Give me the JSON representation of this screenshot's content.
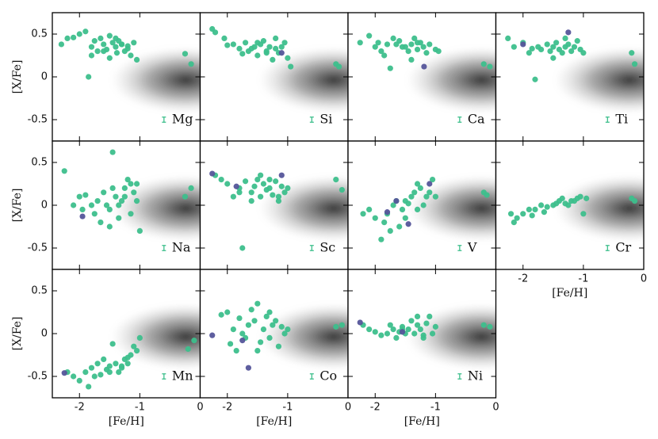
{
  "chart_data": [
    {
      "type": "scatter",
      "annotation": "Mg",
      "ylabel": "[X/Fe]",
      "xlim": [
        -2.45,
        0
      ],
      "ylim": [
        -0.75,
        0.75
      ],
      "xticks": [
        -2,
        -1,
        0
      ],
      "yticks": [
        0.5,
        0,
        -0.5
      ],
      "error_bar": {
        "x": -0.6,
        "y": -0.5,
        "yerr": 0.03
      },
      "series": [
        {
          "color": "#3dbf8c",
          "x": [
            -2.3,
            -2.2,
            -2.1,
            -2.0,
            -1.9,
            -1.85,
            -1.8,
            -1.75,
            -1.7,
            -1.65,
            -1.6,
            -1.55,
            -1.5,
            -1.45,
            -1.4,
            -1.38,
            -1.35,
            -1.3,
            -1.25,
            -1.2,
            -1.15,
            -1.1,
            -1.05,
            -1.6,
            -1.5,
            -1.4,
            -1.3,
            -1.2,
            -1.8,
            -0.25,
            -0.15
          ],
          "y": [
            0.38,
            0.45,
            0.46,
            0.5,
            0.53,
            0.0,
            0.35,
            0.42,
            0.3,
            0.45,
            0.38,
            0.32,
            0.48,
            0.4,
            0.35,
            0.28,
            0.42,
            0.38,
            0.3,
            0.33,
            0.25,
            0.4,
            0.2,
            0.3,
            0.22,
            0.45,
            0.38,
            0.36,
            0.25,
            0.27,
            0.15
          ]
        }
      ]
    },
    {
      "type": "scatter",
      "annotation": "Si",
      "xlim": [
        -2.45,
        0
      ],
      "ylim": [
        -0.75,
        0.75
      ],
      "xticks": [
        -2,
        -1,
        0
      ],
      "yticks": [
        0.5,
        0,
        -0.5
      ],
      "error_bar": {
        "x": -0.6,
        "y": -0.5,
        "yerr": 0.03
      },
      "series": [
        {
          "color": "#3dbf8c",
          "x": [
            -2.25,
            -2.2,
            -2.05,
            -2.0,
            -1.9,
            -1.8,
            -1.75,
            -1.7,
            -1.6,
            -1.55,
            -1.5,
            -1.45,
            -1.4,
            -1.35,
            -1.3,
            -1.25,
            -1.2,
            -1.15,
            -1.1,
            -1.05,
            -1.0,
            -1.65,
            -1.5,
            -1.35,
            -1.2,
            -0.95,
            -0.2,
            -0.15
          ],
          "y": [
            0.56,
            0.52,
            0.45,
            0.37,
            0.38,
            0.33,
            0.27,
            0.4,
            0.33,
            0.35,
            0.25,
            0.38,
            0.42,
            0.3,
            0.35,
            0.2,
            0.33,
            0.28,
            0.35,
            0.4,
            0.22,
            0.3,
            0.4,
            0.28,
            0.45,
            0.12,
            0.15,
            0.12
          ]
        },
        {
          "color": "#55559a",
          "x": [
            -1.1
          ],
          "y": [
            0.28
          ]
        }
      ]
    },
    {
      "type": "scatter",
      "annotation": "Ca",
      "xlim": [
        -2.45,
        0
      ],
      "ylim": [
        -0.75,
        0.75
      ],
      "xticks": [
        -2,
        -1,
        0
      ],
      "yticks": [
        0.5,
        0,
        -0.5
      ],
      "error_bar": {
        "x": -0.6,
        "y": -0.5,
        "yerr": 0.03
      },
      "series": [
        {
          "color": "#3dbf8c",
          "x": [
            -2.25,
            -2.1,
            -2.0,
            -1.95,
            -1.85,
            -1.8,
            -1.7,
            -1.65,
            -1.6,
            -1.5,
            -1.45,
            -1.4,
            -1.35,
            -1.3,
            -1.25,
            -1.2,
            -1.15,
            -1.1,
            -1.0,
            -0.95,
            -1.75,
            -1.55,
            -1.4,
            -1.3,
            -1.9,
            -0.2,
            -0.1
          ],
          "y": [
            0.4,
            0.48,
            0.35,
            0.4,
            0.25,
            0.38,
            0.45,
            0.38,
            0.42,
            0.35,
            0.3,
            0.38,
            0.45,
            0.32,
            0.4,
            0.35,
            0.28,
            0.38,
            0.32,
            0.3,
            0.1,
            0.35,
            0.2,
            0.4,
            0.3,
            0.15,
            0.12
          ]
        },
        {
          "color": "#55559a",
          "x": [
            -1.19
          ],
          "y": [
            0.12
          ]
        }
      ]
    },
    {
      "type": "scatter",
      "annotation": "Ti",
      "xlim": [
        -2.45,
        0
      ],
      "ylim": [
        -0.75,
        0.75
      ],
      "xticks": [
        -2,
        -1,
        0
      ],
      "yticks": [
        0.5,
        0,
        -0.5
      ],
      "error_bar": {
        "x": -0.6,
        "y": -0.5,
        "yerr": 0.03
      },
      "series": [
        {
          "color": "#3dbf8c",
          "x": [
            -2.25,
            -2.15,
            -2.0,
            -1.9,
            -1.85,
            -1.8,
            -1.7,
            -1.6,
            -1.55,
            -1.5,
            -1.45,
            -1.4,
            -1.35,
            -1.3,
            -1.25,
            -1.2,
            -1.15,
            -1.1,
            -1.05,
            -1.0,
            -1.75,
            -1.5,
            -1.3,
            -0.2,
            -0.15
          ],
          "y": [
            0.45,
            0.35,
            0.4,
            0.28,
            0.33,
            -0.03,
            0.32,
            0.38,
            0.3,
            0.35,
            0.4,
            0.32,
            0.28,
            0.35,
            0.38,
            0.3,
            0.35,
            0.42,
            0.32,
            0.28,
            0.35,
            0.22,
            0.45,
            0.28,
            0.15
          ]
        },
        {
          "color": "#55559a",
          "x": [
            -2.0,
            -1.25
          ],
          "y": [
            0.38,
            0.52
          ]
        }
      ]
    },
    {
      "type": "scatter",
      "annotation": "Na",
      "ylabel": "[X/Fe]",
      "xlim": [
        -2.45,
        0
      ],
      "ylim": [
        -0.75,
        0.75
      ],
      "xticks": [
        -2,
        -1,
        0
      ],
      "yticks": [
        0.5,
        0,
        -0.5
      ],
      "error_bar": {
        "x": -0.6,
        "y": -0.5,
        "yerr": 0.03
      },
      "series": [
        {
          "color": "#3dbf8c",
          "x": [
            -2.25,
            -2.1,
            -2.0,
            -1.95,
            -1.9,
            -1.8,
            -1.75,
            -1.7,
            -1.65,
            -1.6,
            -1.55,
            -1.5,
            -1.45,
            -1.4,
            -1.35,
            -1.3,
            -1.25,
            -1.2,
            -1.15,
            -1.1,
            -1.05,
            -1.0,
            -1.45,
            -1.5,
            -1.35,
            -1.25,
            -1.15,
            -1.05,
            -0.25,
            -0.15
          ],
          "y": [
            0.4,
            0.0,
            0.1,
            -0.05,
            0.12,
            0.0,
            -0.1,
            0.05,
            -0.2,
            0.15,
            0.0,
            -0.05,
            0.62,
            0.1,
            -0.15,
            0.05,
            0.2,
            0.3,
            -0.1,
            0.15,
            0.05,
            -0.3,
            0.2,
            -0.25,
            0.0,
            0.1,
            0.25,
            0.25,
            0.1,
            0.2
          ]
        },
        {
          "color": "#55559a",
          "x": [
            -1.95
          ],
          "y": [
            -0.13
          ]
        }
      ]
    },
    {
      "type": "scatter",
      "annotation": "Sc",
      "xlim": [
        -2.45,
        0
      ],
      "ylim": [
        -0.75,
        0.75
      ],
      "xticks": [
        -2,
        -1,
        0
      ],
      "yticks": [
        0.5,
        0,
        -0.5
      ],
      "error_bar": {
        "x": -0.6,
        "y": -0.5,
        "yerr": 0.03
      },
      "series": [
        {
          "color": "#3dbf8c",
          "x": [
            -2.2,
            -2.1,
            -2.0,
            -1.9,
            -1.8,
            -1.75,
            -1.7,
            -1.6,
            -1.55,
            -1.5,
            -1.45,
            -1.4,
            -1.35,
            -1.3,
            -1.25,
            -1.2,
            -1.15,
            -1.1,
            -1.05,
            -1.0,
            -1.6,
            -1.45,
            -1.3,
            -1.8,
            -1.15,
            -0.2,
            -0.1
          ],
          "y": [
            0.35,
            0.3,
            0.25,
            0.1,
            0.2,
            -0.5,
            0.28,
            0.15,
            0.22,
            0.3,
            0.1,
            0.25,
            0.18,
            0.2,
            0.12,
            0.28,
            0.05,
            0.22,
            0.15,
            0.2,
            0.05,
            0.35,
            0.3,
            0.15,
            0.1,
            0.3,
            0.18
          ]
        },
        {
          "color": "#55559a",
          "x": [
            -2.25,
            -1.85,
            -1.1
          ],
          "y": [
            0.37,
            0.22,
            0.35
          ]
        }
      ]
    },
    {
      "type": "scatter",
      "annotation": "V",
      "xlim": [
        -2.45,
        0
      ],
      "ylim": [
        -0.75,
        0.75
      ],
      "xticks": [
        -2,
        -1,
        0
      ],
      "yticks": [
        0.5,
        0,
        -0.5
      ],
      "error_bar": {
        "x": -0.6,
        "y": -0.5,
        "yerr": 0.03
      },
      "series": [
        {
          "color": "#3dbf8c",
          "x": [
            -2.2,
            -2.1,
            -2.0,
            -1.9,
            -1.85,
            -1.8,
            -1.7,
            -1.65,
            -1.6,
            -1.55,
            -1.5,
            -1.45,
            -1.4,
            -1.35,
            -1.3,
            -1.25,
            -1.2,
            -1.15,
            -1.1,
            -1.05,
            -1.0,
            -1.75,
            -1.5,
            -1.3,
            -0.2,
            -0.15
          ],
          "y": [
            -0.1,
            -0.05,
            -0.15,
            -0.4,
            -0.2,
            -0.1,
            0.0,
            0.05,
            -0.25,
            -0.05,
            0.05,
            0.02,
            0.1,
            0.15,
            -0.05,
            0.2,
            0.0,
            0.1,
            0.15,
            0.3,
            0.1,
            -0.3,
            -0.15,
            0.25,
            0.15,
            0.12
          ]
        },
        {
          "color": "#55559a",
          "x": [
            -1.8,
            -1.45,
            -1.1,
            -1.65
          ],
          "y": [
            -0.08,
            -0.22,
            0.25,
            0.05
          ]
        }
      ]
    },
    {
      "type": "scatter",
      "annotation": "Cr",
      "xlabel": "[Fe/H]",
      "xlim": [
        -2.45,
        0
      ],
      "ylim": [
        -0.75,
        0.75
      ],
      "xticks": [
        -2,
        -1,
        0
      ],
      "yticks": [
        0.5,
        0,
        -0.5
      ],
      "error_bar": {
        "x": -0.6,
        "y": -0.5,
        "yerr": 0.03
      },
      "series": [
        {
          "color": "#3dbf8c",
          "x": [
            -2.2,
            -2.1,
            -2.0,
            -1.9,
            -1.8,
            -1.7,
            -1.6,
            -1.5,
            -1.4,
            -1.3,
            -1.2,
            -1.1,
            -1.05,
            -1.0,
            -2.15,
            -1.85,
            -1.65,
            -1.45,
            -1.35,
            -1.25,
            -1.15,
            -0.95,
            -0.2,
            -0.15
          ],
          "y": [
            -0.1,
            -0.15,
            -0.1,
            -0.05,
            -0.05,
            0.0,
            -0.02,
            0.0,
            0.05,
            0.02,
            0.05,
            0.08,
            0.1,
            -0.1,
            -0.2,
            -0.12,
            -0.08,
            0.02,
            0.08,
            0.0,
            0.05,
            0.08,
            0.08,
            0.05
          ]
        }
      ]
    },
    {
      "type": "scatter",
      "annotation": "Mn",
      "xlabel": "[Fe/H]",
      "ylabel": "[X/Fe]",
      "xlim": [
        -2.45,
        0
      ],
      "ylim": [
        -0.75,
        0.75
      ],
      "xticks": [
        -2,
        -1,
        0
      ],
      "yticks": [
        0.5,
        0,
        -0.5
      ],
      "error_bar": {
        "x": -0.6,
        "y": -0.5,
        "yerr": 0.03
      },
      "series": [
        {
          "color": "#3dbf8c",
          "x": [
            -2.2,
            -2.1,
            -2.0,
            -1.9,
            -1.85,
            -1.8,
            -1.7,
            -1.65,
            -1.6,
            -1.55,
            -1.5,
            -1.45,
            -1.4,
            -1.35,
            -1.3,
            -1.25,
            -1.2,
            -1.15,
            -1.1,
            -1.05,
            -1.0,
            -1.75,
            -1.5,
            -1.3,
            -1.2,
            -0.2,
            -0.1
          ],
          "y": [
            -0.45,
            -0.5,
            -0.55,
            -0.45,
            -0.62,
            -0.4,
            -0.35,
            -0.48,
            -0.3,
            -0.42,
            -0.38,
            -0.12,
            -0.35,
            -0.45,
            -0.4,
            -0.3,
            -0.35,
            -0.25,
            -0.15,
            -0.2,
            -0.05,
            -0.5,
            -0.45,
            -0.38,
            -0.28,
            -0.18,
            -0.08
          ]
        },
        {
          "color": "#55559a",
          "x": [
            -2.25
          ],
          "y": [
            -0.46
          ]
        }
      ]
    },
    {
      "type": "scatter",
      "annotation": "Co",
      "xlabel": "[Fe/H]",
      "xlim": [
        -2.45,
        0
      ],
      "ylim": [
        -0.75,
        0.75
      ],
      "xticks": [
        -2,
        -1,
        0
      ],
      "yticks": [
        0.5,
        0,
        -0.5
      ],
      "error_bar": {
        "x": -0.6,
        "y": -0.5,
        "yerr": 0.03
      },
      "series": [
        {
          "color": "#3dbf8c",
          "x": [
            -2.1,
            -2.0,
            -1.95,
            -1.9,
            -1.8,
            -1.75,
            -1.7,
            -1.65,
            -1.6,
            -1.55,
            -1.5,
            -1.45,
            -1.4,
            -1.35,
            -1.3,
            -1.25,
            -1.2,
            -1.15,
            -1.1,
            -1.05,
            -1.0,
            -1.85,
            -1.5,
            -1.3,
            -0.2,
            -0.1
          ],
          "y": [
            0.22,
            0.25,
            -0.12,
            0.05,
            0.18,
            0.0,
            -0.05,
            0.1,
            0.28,
            0.15,
            0.35,
            -0.1,
            0.05,
            0.2,
            -0.05,
            0.1,
            0.15,
            -0.15,
            0.08,
            0.0,
            0.05,
            -0.2,
            -0.2,
            0.25,
            0.08,
            0.1
          ]
        },
        {
          "color": "#55559a",
          "x": [
            -2.25,
            -1.65,
            -1.75
          ],
          "y": [
            -0.02,
            -0.4,
            -0.08
          ]
        }
      ]
    },
    {
      "type": "scatter",
      "annotation": "Ni",
      "xlabel": "[Fe/H]",
      "xlim": [
        -2.45,
        0
      ],
      "ylim": [
        -0.75,
        0.75
      ],
      "xticks": [
        -2,
        -1,
        0
      ],
      "yticks": [
        0.5,
        0,
        -0.5
      ],
      "error_bar": {
        "x": -0.6,
        "y": -0.5,
        "yerr": 0.03
      },
      "series": [
        {
          "color": "#3dbf8c",
          "x": [
            -2.2,
            -2.1,
            -2.0,
            -1.9,
            -1.8,
            -1.7,
            -1.65,
            -1.6,
            -1.55,
            -1.5,
            -1.45,
            -1.4,
            -1.35,
            -1.3,
            -1.25,
            -1.2,
            -1.15,
            -1.1,
            -1.05,
            -1.0,
            -1.75,
            -1.55,
            -1.3,
            -1.2,
            -0.2,
            -0.1
          ],
          "y": [
            0.1,
            0.05,
            0.02,
            -0.02,
            0.0,
            0.05,
            -0.05,
            0.02,
            0.08,
            0.0,
            0.05,
            0.15,
            0.0,
            0.1,
            0.05,
            -0.05,
            0.12,
            0.2,
            0.0,
            0.08,
            0.1,
            0.05,
            0.2,
            -0.02,
            0.1,
            0.08
          ]
        },
        {
          "color": "#55559a",
          "x": [
            -2.25,
            -1.55
          ],
          "y": [
            0.13,
            0.02
          ]
        }
      ]
    }
  ]
}
